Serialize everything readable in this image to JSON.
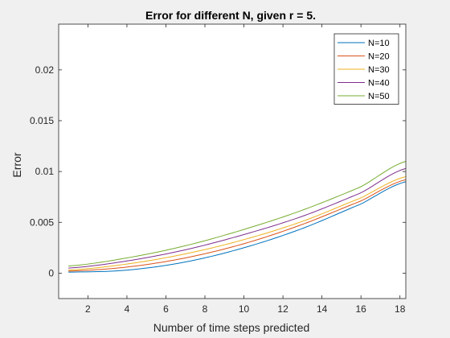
{
  "chart_data": {
    "type": "line",
    "title": "Error for different N, given r = 5.",
    "xlabel": "Number of time steps predicted",
    "ylabel": "Error",
    "xlim": [
      0.5,
      18.3
    ],
    "ylim": [
      -0.0025,
      0.0245
    ],
    "xticks": [
      2,
      4,
      6,
      8,
      10,
      12,
      14,
      16,
      18
    ],
    "yticks": [
      0,
      0.005,
      0.01,
      0.015,
      0.02
    ],
    "ytick_labels": [
      "0",
      "0.005",
      "0.01",
      "0.015",
      "0.02"
    ],
    "legend_location": "top-right",
    "series": [
      {
        "name": "N=10",
        "color": "#0072bd",
        "x": [
          1,
          4,
          7,
          10,
          13,
          16,
          18.3
        ],
        "y": [
          0.0001,
          0.0003,
          0.0011,
          0.0025,
          0.0044,
          0.0068,
          0.009
        ]
      },
      {
        "name": "N=20",
        "color": "#d95319",
        "x": [
          1,
          4,
          7,
          10,
          13,
          16,
          18.3
        ],
        "y": [
          0.0002,
          0.0006,
          0.0015,
          0.0029,
          0.0048,
          0.0071,
          0.0092
        ]
      },
      {
        "name": "N=30",
        "color": "#edb120",
        "x": [
          1,
          4,
          7,
          10,
          13,
          16,
          18.3
        ],
        "y": [
          0.0003,
          0.0009,
          0.0019,
          0.0033,
          0.0051,
          0.0074,
          0.0095
        ]
      },
      {
        "name": "N=40",
        "color": "#7e2f8e",
        "x": [
          1,
          4,
          7,
          10,
          13,
          16,
          18.3
        ],
        "y": [
          0.0005,
          0.0012,
          0.0023,
          0.0038,
          0.0056,
          0.0079,
          0.0103
        ]
      },
      {
        "name": "N=50",
        "color": "#77ac30",
        "x": [
          1,
          4,
          7,
          10,
          13,
          16,
          18.3
        ],
        "y": [
          0.0007,
          0.0015,
          0.0027,
          0.0043,
          0.0062,
          0.0085,
          0.011
        ]
      }
    ]
  }
}
